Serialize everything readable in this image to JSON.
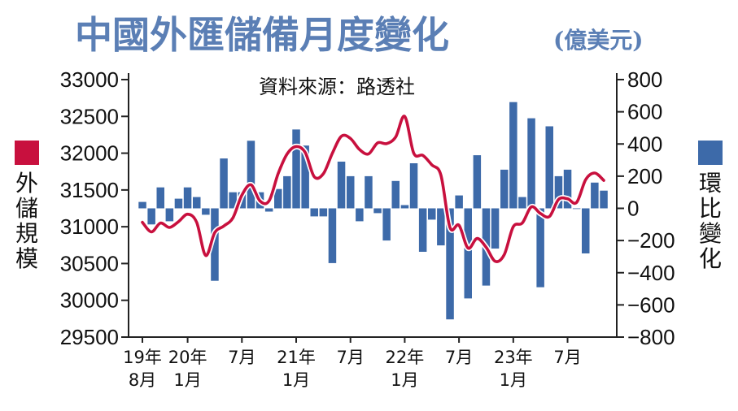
{
  "title": "中國外匯儲備月度變化",
  "title_unit": "(億美元)",
  "source": "資料來源：路透社",
  "colors": {
    "title": "#5b7fb5",
    "bar": "#3d6aa9",
    "line": "#c8103e",
    "axis": "#222222"
  },
  "chart_data": {
    "type": "bar+line",
    "x_tick_labels": [
      {
        "index": 0,
        "lines": [
          "19年",
          "8月"
        ]
      },
      {
        "index": 5,
        "lines": [
          "20年",
          "1月"
        ]
      },
      {
        "index": 11,
        "lines": [
          "7月"
        ]
      },
      {
        "index": 17,
        "lines": [
          "21年",
          "1月"
        ]
      },
      {
        "index": 23,
        "lines": [
          "7月"
        ]
      },
      {
        "index": 29,
        "lines": [
          "22年",
          "1月"
        ]
      },
      {
        "index": 35,
        "lines": [
          "7月"
        ]
      },
      {
        "index": 41,
        "lines": [
          "23年",
          "1月"
        ]
      },
      {
        "index": 47,
        "lines": [
          "7月"
        ]
      }
    ],
    "series": [
      {
        "name": "外儲規模",
        "axis": "left",
        "kind": "line",
        "values": [
          31060,
          30930,
          31050,
          30990,
          31070,
          31170,
          31060,
          30610,
          30920,
          31010,
          31120,
          31430,
          31570,
          31350,
          31350,
          31720,
          31990,
          32090,
          32010,
          31680,
          31720,
          32000,
          32230,
          32200,
          32050,
          31990,
          32140,
          32130,
          32220,
          32500,
          32000,
          31970,
          31840,
          31700,
          30990,
          31020,
          30710,
          30840,
          30720,
          30530,
          30620,
          31000,
          31050,
          31270,
          31180,
          31140,
          31370,
          31380,
          31330,
          31640,
          31730,
          31630
        ]
      },
      {
        "name": "環比變化",
        "axis": "right",
        "kind": "bar",
        "values": [
          40,
          -100,
          130,
          -80,
          60,
          130,
          70,
          -40,
          -450,
          310,
          100,
          100,
          420,
          100,
          -20,
          120,
          200,
          490,
          390,
          -50,
          -50,
          -340,
          290,
          200,
          -80,
          200,
          -30,
          -200,
          170,
          20,
          280,
          -270,
          -70,
          -230,
          -690,
          80,
          -560,
          330,
          -480,
          -250,
          240,
          660,
          70,
          560,
          -490,
          510,
          200,
          240,
          0,
          -280,
          160,
          110
        ]
      }
    ],
    "ylim_left": [
      29500,
      33000
    ],
    "yticks_left": [
      29500,
      30000,
      30500,
      31000,
      31500,
      32000,
      32500,
      33000
    ],
    "ylim_right": [
      -800,
      800
    ],
    "yticks_right": [
      -800,
      -600,
      -400,
      -200,
      0,
      200,
      400,
      600,
      800
    ],
    "legend": [
      {
        "name_chars": [
          "外",
          "儲",
          "規",
          "模"
        ],
        "color": "#c8103e",
        "placement": "left"
      },
      {
        "name_chars": [
          "環",
          "比",
          "變",
          "化"
        ],
        "color": "#3d6aa9",
        "placement": "right"
      }
    ],
    "grid": false
  }
}
